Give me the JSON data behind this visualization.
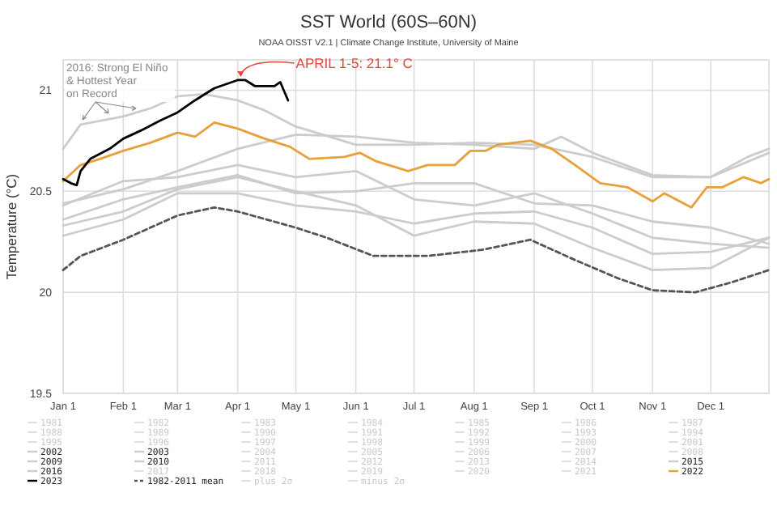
{
  "chart_data": {
    "type": "line",
    "title": "SST World (60S–60N)",
    "subtitle": "NOAA OISST V2.1 | Climate Change Institute, University of Maine",
    "ylabel": "Temperature (°C)",
    "xlim": [
      "--01-01",
      "--12-31"
    ],
    "xticks": [
      {
        "value": "--01-01",
        "label": "Jan 1"
      },
      {
        "value": "--02-01",
        "label": "Feb 1"
      },
      {
        "value": "--03-01",
        "label": "Mar 1"
      },
      {
        "value": "--04-01",
        "label": "Apr 1"
      },
      {
        "value": "--05-01",
        "label": "May 1"
      },
      {
        "value": "--06-01",
        "label": "Jun 1"
      },
      {
        "value": "--07-01",
        "label": "Jul 1"
      },
      {
        "value": "--08-01",
        "label": "Aug 1"
      },
      {
        "value": "--09-01",
        "label": "Sep 1"
      },
      {
        "value": "--10-01",
        "label": "Oct 1"
      },
      {
        "value": "--11-01",
        "label": "Nov 1"
      },
      {
        "value": "--12-01",
        "label": "Dec 1"
      }
    ],
    "ylim": [
      19.5,
      21.15
    ],
    "yticks": [
      19.5,
      20,
      20.5,
      21
    ],
    "grid": true,
    "legend": "bottom",
    "marker": "none",
    "annotations": [
      "2016: Strong El Niño & Hottest Year on Record",
      "APRIL 1-5: 21.1° C"
    ],
    "series": [
      {
        "name": "1981",
        "color": "#d9d9d9"
      },
      {
        "name": "1982",
        "color": "#d9d9d9"
      },
      {
        "name": "1983",
        "color": "#d9d9d9"
      },
      {
        "name": "1984",
        "color": "#d9d9d9"
      },
      {
        "name": "1985",
        "color": "#d9d9d9"
      },
      {
        "name": "1986",
        "color": "#d9d9d9"
      },
      {
        "name": "1987",
        "color": "#d9d9d9"
      },
      {
        "name": "1988",
        "color": "#d9d9d9"
      },
      {
        "name": "1989",
        "color": "#d9d9d9"
      },
      {
        "name": "1990",
        "color": "#d9d9d9"
      },
      {
        "name": "1991",
        "color": "#d9d9d9"
      },
      {
        "name": "1992",
        "color": "#d9d9d9"
      },
      {
        "name": "1993",
        "color": "#d9d9d9"
      },
      {
        "name": "1994",
        "color": "#d9d9d9"
      },
      {
        "name": "1995",
        "color": "#d9d9d9"
      },
      {
        "name": "1996",
        "color": "#d9d9d9"
      },
      {
        "name": "1997",
        "color": "#d9d9d9"
      },
      {
        "name": "1998",
        "color": "#d9d9d9"
      },
      {
        "name": "1999",
        "color": "#d9d9d9"
      },
      {
        "name": "2000",
        "color": "#d9d9d9"
      },
      {
        "name": "2001",
        "color": "#d9d9d9"
      },
      {
        "name": "2002",
        "color": "#cccccc",
        "x": [
          "--01-01",
          "--02-01",
          "--03-01",
          "--04-01",
          "--05-01",
          "--06-01",
          "--07-01",
          "--08-01",
          "--09-01",
          "--10-01",
          "--11-01",
          "--12-01",
          "--12-31"
        ],
        "values": [
          20.36,
          20.46,
          20.52,
          20.58,
          20.49,
          20.5,
          20.54,
          20.54,
          20.44,
          20.43,
          20.35,
          20.32,
          20.24
        ]
      },
      {
        "name": "2003",
        "color": "#cccccc",
        "x": [
          "--01-01",
          "--02-01",
          "--03-01",
          "--04-01",
          "--05-01",
          "--06-01",
          "--07-01",
          "--08-01",
          "--09-01",
          "--10-01",
          "--11-01",
          "--12-01",
          "--12-31"
        ],
        "values": [
          20.43,
          20.55,
          20.57,
          20.63,
          20.57,
          20.6,
          20.46,
          20.43,
          20.49,
          20.39,
          20.27,
          20.24,
          20.22
        ]
      },
      {
        "name": "2004",
        "color": "#d9d9d9"
      },
      {
        "name": "2005",
        "color": "#d9d9d9"
      },
      {
        "name": "2006",
        "color": "#d9d9d9"
      },
      {
        "name": "2007",
        "color": "#d9d9d9"
      },
      {
        "name": "2008",
        "color": "#d9d9d9"
      },
      {
        "name": "2009",
        "color": "#cccccc",
        "x": [
          "--01-01",
          "--02-01",
          "--03-01",
          "--04-01",
          "--05-01",
          "--06-01",
          "--07-01",
          "--08-01",
          "--09-01",
          "--10-01",
          "--11-01",
          "--12-01",
          "--12-31"
        ],
        "values": [
          20.28,
          20.36,
          20.49,
          20.49,
          20.43,
          20.4,
          20.34,
          20.39,
          20.4,
          20.32,
          20.19,
          20.2,
          20.27
        ]
      },
      {
        "name": "2010",
        "color": "#cccccc",
        "x": [
          "--01-01",
          "--02-01",
          "--03-01",
          "--04-01",
          "--05-01",
          "--06-01",
          "--07-01",
          "--08-01",
          "--09-01",
          "--10-01",
          "--11-01",
          "--12-01",
          "--12-31"
        ],
        "values": [
          20.33,
          20.4,
          20.51,
          20.57,
          20.5,
          20.43,
          20.28,
          20.35,
          20.34,
          20.22,
          20.11,
          20.12,
          20.27
        ]
      },
      {
        "name": "2011",
        "color": "#d9d9d9"
      },
      {
        "name": "2012",
        "color": "#d9d9d9"
      },
      {
        "name": "2013",
        "color": "#d9d9d9"
      },
      {
        "name": "2014",
        "color": "#d9d9d9"
      },
      {
        "name": "2015",
        "color": "#cccccc",
        "x": [
          "--01-01",
          "--02-01",
          "--03-01",
          "--04-01",
          "--05-01",
          "--06-01",
          "--07-01",
          "--08-01",
          "--09-01",
          "--09-15",
          "--10-01",
          "--11-01",
          "--12-01",
          "--12-20",
          "--12-31"
        ],
        "values": [
          20.44,
          20.51,
          20.6,
          20.71,
          20.78,
          20.77,
          20.74,
          20.73,
          20.71,
          20.77,
          20.69,
          20.58,
          20.57,
          20.67,
          20.71
        ]
      },
      {
        "name": "2016",
        "color": "#cccccc",
        "x": [
          "--01-01",
          "--01-10",
          "--02-01",
          "--02-15",
          "--03-01",
          "--03-15",
          "--04-01",
          "--04-15",
          "--05-01",
          "--05-15",
          "--06-01",
          "--07-01",
          "--08-01",
          "--09-01",
          "--10-01",
          "--11-01",
          "--12-01",
          "--12-31"
        ],
        "values": [
          20.71,
          20.83,
          20.87,
          20.91,
          20.97,
          20.98,
          20.95,
          20.9,
          20.82,
          20.78,
          20.73,
          20.73,
          20.74,
          20.73,
          20.67,
          20.57,
          20.57,
          20.69
        ]
      },
      {
        "name": "2017",
        "color": "#d9d9d9"
      },
      {
        "name": "2018",
        "color": "#d9d9d9"
      },
      {
        "name": "2019",
        "color": "#d9d9d9"
      },
      {
        "name": "2020",
        "color": "#d9d9d9"
      },
      {
        "name": "2021",
        "color": "#d9d9d9"
      },
      {
        "name": "2022",
        "color": "#e8a03a",
        "x": [
          "--01-01",
          "--01-10",
          "--01-20",
          "--02-01",
          "--02-15",
          "--03-01",
          "--03-10",
          "--03-20",
          "--04-01",
          "--04-15",
          "--04-28",
          "--05-08",
          "--05-26",
          "--06-03",
          "--06-11",
          "--06-28",
          "--07-08",
          "--07-22",
          "--07-30",
          "--08-07",
          "--08-13",
          "--08-30",
          "--09-10",
          "--09-22",
          "--10-05",
          "--10-19",
          "--11-01",
          "--11-07",
          "--11-21",
          "--11-29",
          "--12-07",
          "--12-18",
          "--12-27",
          "--12-31"
        ],
        "values": [
          20.55,
          20.63,
          20.66,
          20.7,
          20.74,
          20.79,
          20.77,
          20.84,
          20.81,
          20.76,
          20.72,
          20.66,
          20.67,
          20.69,
          20.65,
          20.6,
          20.63,
          20.63,
          20.7,
          20.7,
          20.73,
          20.75,
          20.71,
          20.63,
          20.54,
          20.52,
          20.45,
          20.49,
          20.42,
          20.52,
          20.52,
          20.57,
          20.54,
          20.56
        ]
      },
      {
        "name": "2023",
        "color": "#000000",
        "x": [
          "--01-01",
          "--01-05",
          "--01-08",
          "--01-10",
          "--01-15",
          "--01-25",
          "--02-01",
          "--02-10",
          "--02-20",
          "--03-01",
          "--03-10",
          "--03-20",
          "--04-01",
          "--04-05",
          "--04-10",
          "--04-20",
          "--04-23",
          "--04-27"
        ],
        "values": [
          20.56,
          20.54,
          20.53,
          20.6,
          20.66,
          20.71,
          20.76,
          20.8,
          20.85,
          20.89,
          20.95,
          21.01,
          21.05,
          21.05,
          21.02,
          21.02,
          21.04,
          20.95
        ]
      },
      {
        "name": "1982-2011 mean",
        "color": "#555555",
        "line_style": "dashed",
        "x": [
          "--01-01",
          "--01-10",
          "--02-01",
          "--03-01",
          "--03-20",
          "--04-01",
          "--05-01",
          "--05-17",
          "--06-10",
          "--07-08",
          "--08-05",
          "--08-30",
          "--09-22",
          "--10-14",
          "--11-01",
          "--11-23",
          "--12-12",
          "--12-31"
        ],
        "values": [
          20.11,
          20.18,
          20.26,
          20.38,
          20.42,
          20.4,
          20.32,
          20.27,
          20.18,
          20.18,
          20.21,
          20.26,
          20.16,
          20.07,
          20.01,
          20.0,
          20.05,
          20.11
        ]
      },
      {
        "name": "plus 2σ",
        "color": "#d9d9d9"
      },
      {
        "name": "minus 2σ",
        "color": "#d9d9d9"
      }
    ]
  }
}
